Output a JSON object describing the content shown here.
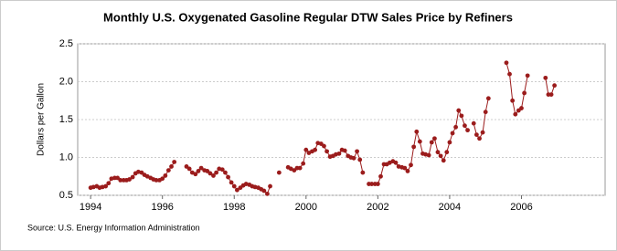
{
  "chart_data": {
    "type": "line",
    "title": "Monthly U.S. Oxygenated Gasoline Regular DTW Sales Price by Refiners",
    "y_label": "Dollars per Gallon",
    "source": "Source: U.S. Energy Information Administration",
    "xlim": [
      1993.64,
      2008.33
    ],
    "xticks": [
      1994,
      1996,
      1998,
      2000,
      2002,
      2004,
      2006
    ],
    "ylim": [
      0.5,
      2.5
    ],
    "yticks": [
      0.5,
      {
        "value": 1.0,
        "label": "1.0"
      },
      1.5,
      {
        "value": 2.0,
        "label": "2.0"
      },
      2.5
    ],
    "grid": true,
    "series": [
      {
        "color": "#9b1c1c",
        "x": [
          1994,
          1994.08,
          1994.17,
          1994.25,
          1994.33,
          1994.42,
          1994.5,
          1994.58,
          1994.67,
          1994.75,
          1994.83,
          1994.92,
          1995,
          1995.08,
          1995.17,
          1995.25,
          1995.33,
          1995.42,
          1995.5,
          1995.58,
          1995.67,
          1995.75,
          1995.83,
          1995.92,
          1996,
          1996.08,
          1996.17,
          1996.25,
          1996.33,
          1996.42,
          1996.5,
          1996.58,
          1996.67,
          1996.75,
          1996.83,
          1996.92,
          1997,
          1997.08,
          1997.17,
          1997.25,
          1997.33,
          1997.42,
          1997.5,
          1997.58,
          1997.67,
          1997.75,
          1997.83,
          1997.92,
          1998,
          1998.08,
          1998.17,
          1998.25,
          1998.33,
          1998.42,
          1998.5,
          1998.58,
          1998.67,
          1998.75,
          1998.83,
          1998.92,
          1999,
          1999.08,
          1999.17,
          1999.25,
          1999.33,
          1999.42,
          1999.5,
          1999.58,
          1999.67,
          1999.75,
          1999.83,
          1999.92,
          2000,
          2000.08,
          2000.17,
          2000.25,
          2000.33,
          2000.42,
          2000.5,
          2000.58,
          2000.67,
          2000.75,
          2000.83,
          2000.92,
          2001,
          2001.08,
          2001.17,
          2001.25,
          2001.33,
          2001.42,
          2001.5,
          2001.58,
          2001.67,
          2001.75,
          2001.83,
          2001.92,
          2002,
          2002.08,
          2002.17,
          2002.25,
          2002.33,
          2002.42,
          2002.5,
          2002.58,
          2002.67,
          2002.75,
          2002.83,
          2002.92,
          2003,
          2003.08,
          2003.17,
          2003.25,
          2003.33,
          2003.42,
          2003.5,
          2003.58,
          2003.67,
          2003.75,
          2003.83,
          2003.92,
          2004,
          2004.08,
          2004.17,
          2004.25,
          2004.33,
          2004.42,
          2004.5,
          2004.58,
          2004.67,
          2004.75,
          2004.83,
          2004.92,
          2005,
          2005.08,
          2005.17,
          2005.25,
          2005.33,
          2005.42,
          2005.5,
          2005.58,
          2005.67,
          2005.75,
          2005.83,
          2005.92,
          2006,
          2006.08,
          2006.17,
          2006.25,
          2006.33,
          2006.42,
          2006.5,
          2006.58,
          2006.67,
          2006.75,
          2006.83,
          2006.92
        ],
        "values": [
          0.6,
          0.61,
          0.62,
          0.6,
          0.61,
          0.62,
          0.66,
          0.72,
          0.73,
          0.73,
          0.7,
          0.7,
          0.7,
          0.71,
          0.74,
          0.79,
          0.81,
          0.8,
          0.77,
          0.75,
          0.73,
          0.71,
          0.7,
          0.7,
          0.72,
          0.76,
          0.83,
          0.88,
          0.94,
          null,
          null,
          null,
          0.88,
          0.85,
          0.8,
          0.78,
          0.82,
          0.86,
          0.83,
          0.82,
          0.79,
          0.76,
          0.8,
          0.85,
          0.84,
          0.8,
          0.74,
          0.67,
          0.62,
          0.57,
          0.6,
          0.63,
          0.65,
          0.64,
          0.62,
          0.61,
          0.6,
          0.58,
          0.56,
          0.52,
          0.62,
          null,
          null,
          0.8,
          null,
          null,
          0.87,
          0.85,
          0.83,
          0.86,
          0.86,
          0.92,
          1.1,
          1.06,
          1.08,
          1.1,
          1.19,
          1.18,
          1.15,
          1.08,
          1.01,
          1.02,
          1.04,
          1.05,
          1.1,
          1.09,
          1.02,
          1.0,
          0.99,
          1.08,
          0.97,
          0.8,
          null,
          0.65,
          0.65,
          0.65,
          0.65,
          0.75,
          0.91,
          0.91,
          0.93,
          0.95,
          0.93,
          0.88,
          0.87,
          0.86,
          0.82,
          0.9,
          1.14,
          1.34,
          1.21,
          1.05,
          1.04,
          1.03,
          1.2,
          1.25,
          1.07,
          1.02,
          0.96,
          1.07,
          1.2,
          1.32,
          1.4,
          1.62,
          1.55,
          1.42,
          1.36,
          null,
          1.45,
          1.3,
          1.25,
          1.33,
          1.6,
          1.78,
          null,
          null,
          null,
          null,
          null,
          2.25,
          2.1,
          1.75,
          1.57,
          1.62,
          1.65,
          1.85,
          2.08,
          null,
          null,
          null,
          null,
          null,
          2.05,
          1.83,
          1.83,
          1.95
        ]
      }
    ]
  }
}
